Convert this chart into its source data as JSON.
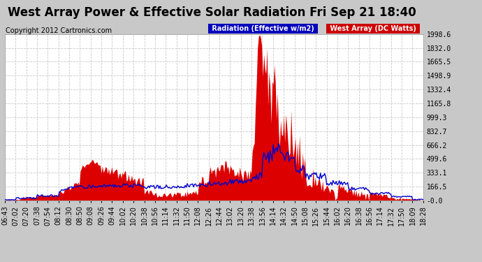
{
  "title": "West Array Power & Effective Solar Radiation Fri Sep 21 18:40",
  "copyright": "Copyright 2012 Cartronics.com",
  "legend_radiation": "Radiation (Effective w/m2)",
  "legend_west": "West Array (DC Watts)",
  "legend_radiation_bg": "#0000bb",
  "legend_west_bg": "#cc0000",
  "background_color": "#c8c8c8",
  "plot_bg": "#ffffff",
  "grid_color": "#c8c8c8",
  "fill_color": "#dd0000",
  "line_color": "#0000cc",
  "ymax": 1998.6,
  "ymin": -0.0,
  "ytick_labels": [
    "1998.6",
    "1832.0",
    "1665.5",
    "1498.9",
    "1332.4",
    "1165.8",
    "999.3",
    "832.7",
    "666.2",
    "499.6",
    "333.1",
    "166.5",
    "-0.0"
  ],
  "ytick_values": [
    1998.6,
    1832.0,
    1665.5,
    1498.9,
    1332.4,
    1165.8,
    999.3,
    832.7,
    666.2,
    499.6,
    333.1,
    166.5,
    0.0
  ],
  "xtick_labels": [
    "06:43",
    "07:02",
    "07:20",
    "07:38",
    "07:54",
    "08:12",
    "08:30",
    "08:50",
    "09:08",
    "09:26",
    "09:44",
    "10:02",
    "10:20",
    "10:38",
    "10:56",
    "11:14",
    "11:32",
    "11:50",
    "12:08",
    "12:26",
    "12:44",
    "13:02",
    "13:20",
    "13:38",
    "13:56",
    "14:14",
    "14:32",
    "14:50",
    "15:08",
    "15:26",
    "15:44",
    "16:02",
    "16:20",
    "16:38",
    "16:56",
    "17:14",
    "17:32",
    "17:50",
    "18:09",
    "18:28"
  ],
  "title_fontsize": 12,
  "copyright_fontsize": 7,
  "tick_fontsize": 7,
  "legend_fontsize": 7
}
